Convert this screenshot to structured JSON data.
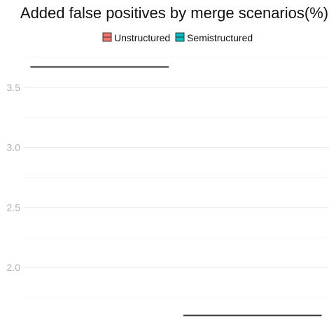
{
  "chart_data": {
    "type": "boxplot",
    "title": "Added false positives by merge scenarios(%)",
    "xlabel": "",
    "ylabel": "",
    "ylim": [
      1.6,
      3.75
    ],
    "yticks": [
      2.0,
      2.5,
      3.0,
      3.5
    ],
    "ytick_labels": [
      "2.0",
      "2.5",
      "3.0",
      "3.5"
    ],
    "grid": true,
    "legend_position": "top",
    "series": [
      {
        "name": "Unstructured",
        "color": "#F8766D",
        "min": 3.67,
        "q1": 3.67,
        "median": 3.67,
        "q3": 3.67,
        "max": 3.67
      },
      {
        "name": "Semistructured",
        "color": "#00BFC4",
        "min": 1.6,
        "q1": 1.6,
        "median": 1.6,
        "q3": 1.6,
        "max": 1.6
      }
    ]
  }
}
